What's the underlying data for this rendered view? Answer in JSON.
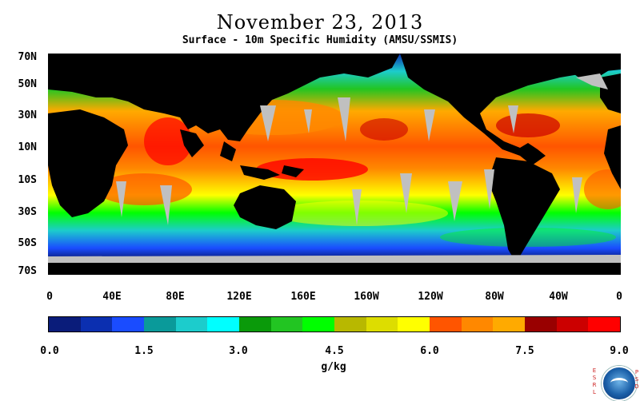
{
  "header": {
    "title": "November 23, 2013",
    "subtitle": "Surface - 10m Specific Humidity (AMSU/SSMIS)"
  },
  "map": {
    "lat_labels": [
      "70N",
      "50N",
      "30N",
      "10N",
      "10S",
      "30S",
      "50S",
      "70S"
    ],
    "lon_labels": [
      "0",
      "40E",
      "80E",
      "120E",
      "160E",
      "160W",
      "120W",
      "80W",
      "40W",
      "0"
    ],
    "land_color": "#000000",
    "missing_data_color": "#c0c0c0"
  },
  "colorbar": {
    "colors": [
      "#0a1c7a",
      "#0b2fb0",
      "#1a4cff",
      "#0a9a9a",
      "#1ccccc",
      "#00ffff",
      "#0a9a0a",
      "#22c522",
      "#00ff00",
      "#b8b800",
      "#dddd00",
      "#ffff00",
      "#ff5500",
      "#ff8800",
      "#ffaa00",
      "#990000",
      "#cc0000",
      "#ff0000"
    ],
    "tick_labels": [
      "0.0",
      "1.5",
      "3.0",
      "4.5",
      "6.0",
      "7.5",
      "9.0"
    ],
    "units": "g/kg"
  },
  "logo": {
    "left_text": "ESRL",
    "right_text": "PSD",
    "icon": "noaa-logo-icon"
  }
}
